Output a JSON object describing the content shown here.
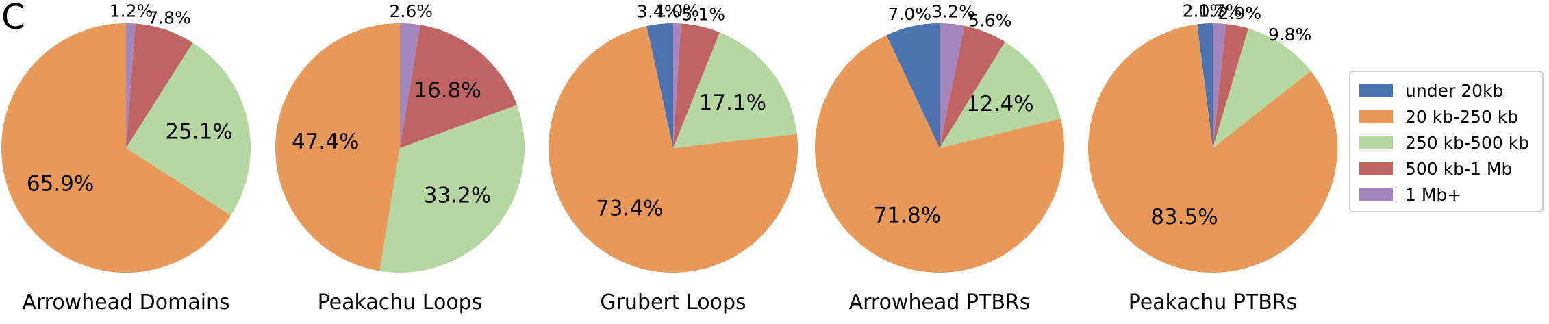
{
  "panel_label": "C",
  "chart_data": [
    {
      "type": "pie",
      "title": "Arrowhead Domains",
      "categories": [
        "under 20kb",
        "20 kb-250 kb",
        "250 kb-500 kb",
        "500 kb-1 Mb",
        "1 Mb+"
      ],
      "values": [
        0.0,
        65.9,
        25.1,
        7.8,
        1.2
      ],
      "labels": [
        "",
        "65.9%",
        "25.1%",
        "7.8%",
        "1.2%"
      ]
    },
    {
      "type": "pie",
      "title": "Peakachu Loops",
      "categories": [
        "under 20kb",
        "20 kb-250 kb",
        "250 kb-500 kb",
        "500 kb-1 Mb",
        "1 Mb+"
      ],
      "values": [
        0.0,
        47.4,
        33.2,
        16.8,
        2.6
      ],
      "labels": [
        "",
        "47.4%",
        "33.2%",
        "16.8%",
        "2.6%"
      ]
    },
    {
      "type": "pie",
      "title": "Grubert Loops",
      "categories": [
        "under 20kb",
        "20 kb-250 kb",
        "250 kb-500 kb",
        "500 kb-1 Mb",
        "1 Mb+"
      ],
      "values": [
        3.4,
        73.4,
        17.1,
        5.1,
        1.0
      ],
      "labels": [
        "3.4%",
        "73.4%",
        "17.1%",
        "5.1%",
        "1.0%"
      ]
    },
    {
      "type": "pie",
      "title": "Arrowhead PTBRs",
      "categories": [
        "under 20kb",
        "20 kb-250 kb",
        "250 kb-500 kb",
        "500 kb-1 Mb",
        "1 Mb+"
      ],
      "values": [
        7.0,
        71.8,
        12.4,
        5.6,
        3.2
      ],
      "labels": [
        "7.0%",
        "71.8%",
        "12.4%",
        "5.6%",
        "3.2%"
      ]
    },
    {
      "type": "pie",
      "title": "Peakachu PTBRs",
      "categories": [
        "under 20kb",
        "20 kb-250 kb",
        "250 kb-500 kb",
        "500 kb-1 Mb",
        "1 Mb+"
      ],
      "values": [
        2.0,
        83.5,
        9.8,
        2.9,
        1.7
      ],
      "labels": [
        "2.0%",
        "83.5%",
        "9.8%",
        "2.9%",
        "1.7%"
      ]
    }
  ],
  "legend": {
    "placement": "right",
    "items": [
      {
        "label": "under 20kb",
        "color": "#4c72b0"
      },
      {
        "label": "20 kb-250 kb",
        "color": "#e8995a"
      },
      {
        "label": "250 kb-500 kb",
        "color": "#b5d8a2"
      },
      {
        "label": "500 kb-1 Mb",
        "color": "#c06463"
      },
      {
        "label": "1 Mb+",
        "color": "#a485be"
      }
    ]
  },
  "colors": [
    "#4c72b0",
    "#e8995a",
    "#b5d8a2",
    "#c06463",
    "#a485be"
  ]
}
